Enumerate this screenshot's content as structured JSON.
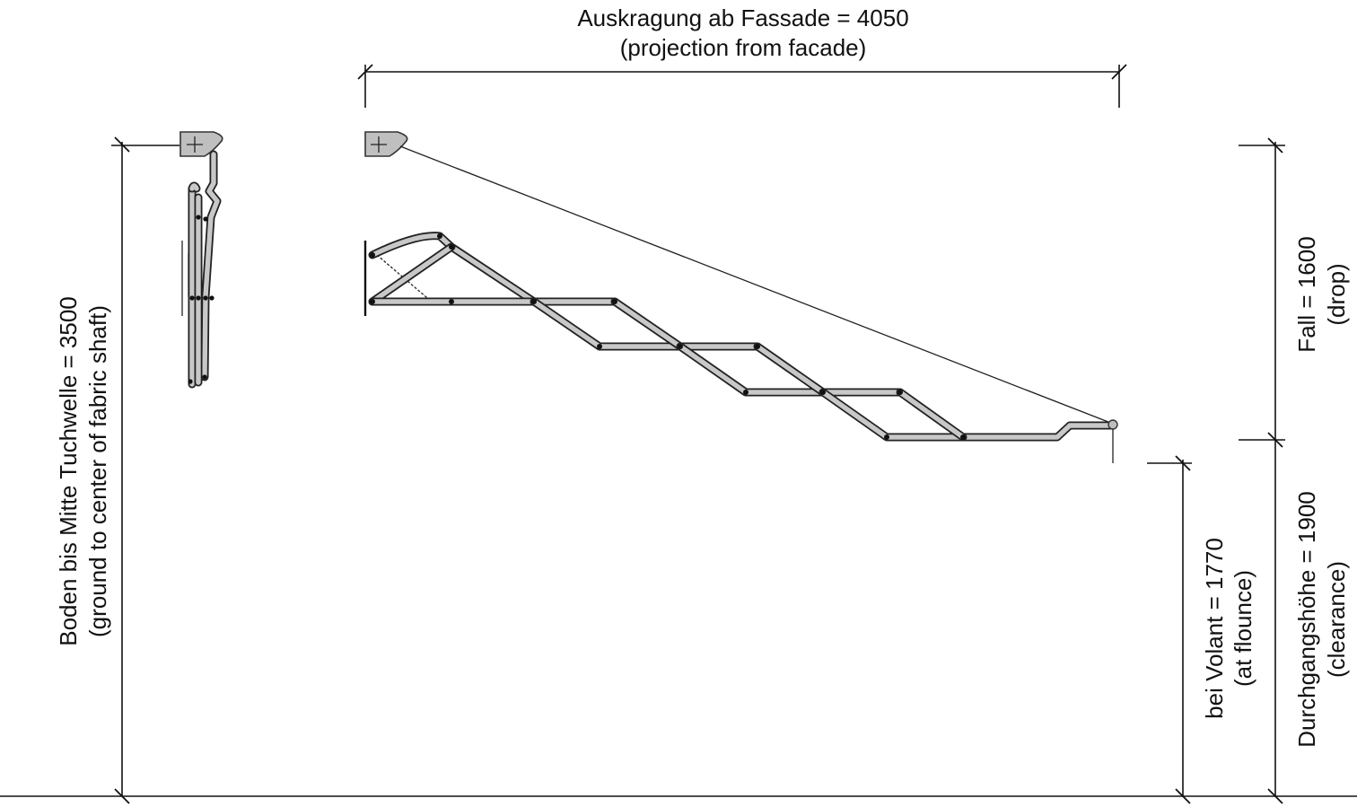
{
  "dimensions": {
    "projection": {
      "line1": "Auskragung ab Fassade = 4050",
      "line2": "(projection from facade)"
    },
    "ground_to_shaft": {
      "line1": "Boden bis Mitte Tuchwelle = 3500",
      "line2": "(ground to center of fabric shaft)"
    },
    "drop": {
      "line1": "Fall = 1600",
      "line2": "(drop)"
    },
    "at_flounce": {
      "line1": "bei Volant = 1770",
      "line2": "(at flounce)"
    },
    "clearance": {
      "line1": "Durchgangshöhe = 1900",
      "line2": "(clearance)"
    }
  }
}
